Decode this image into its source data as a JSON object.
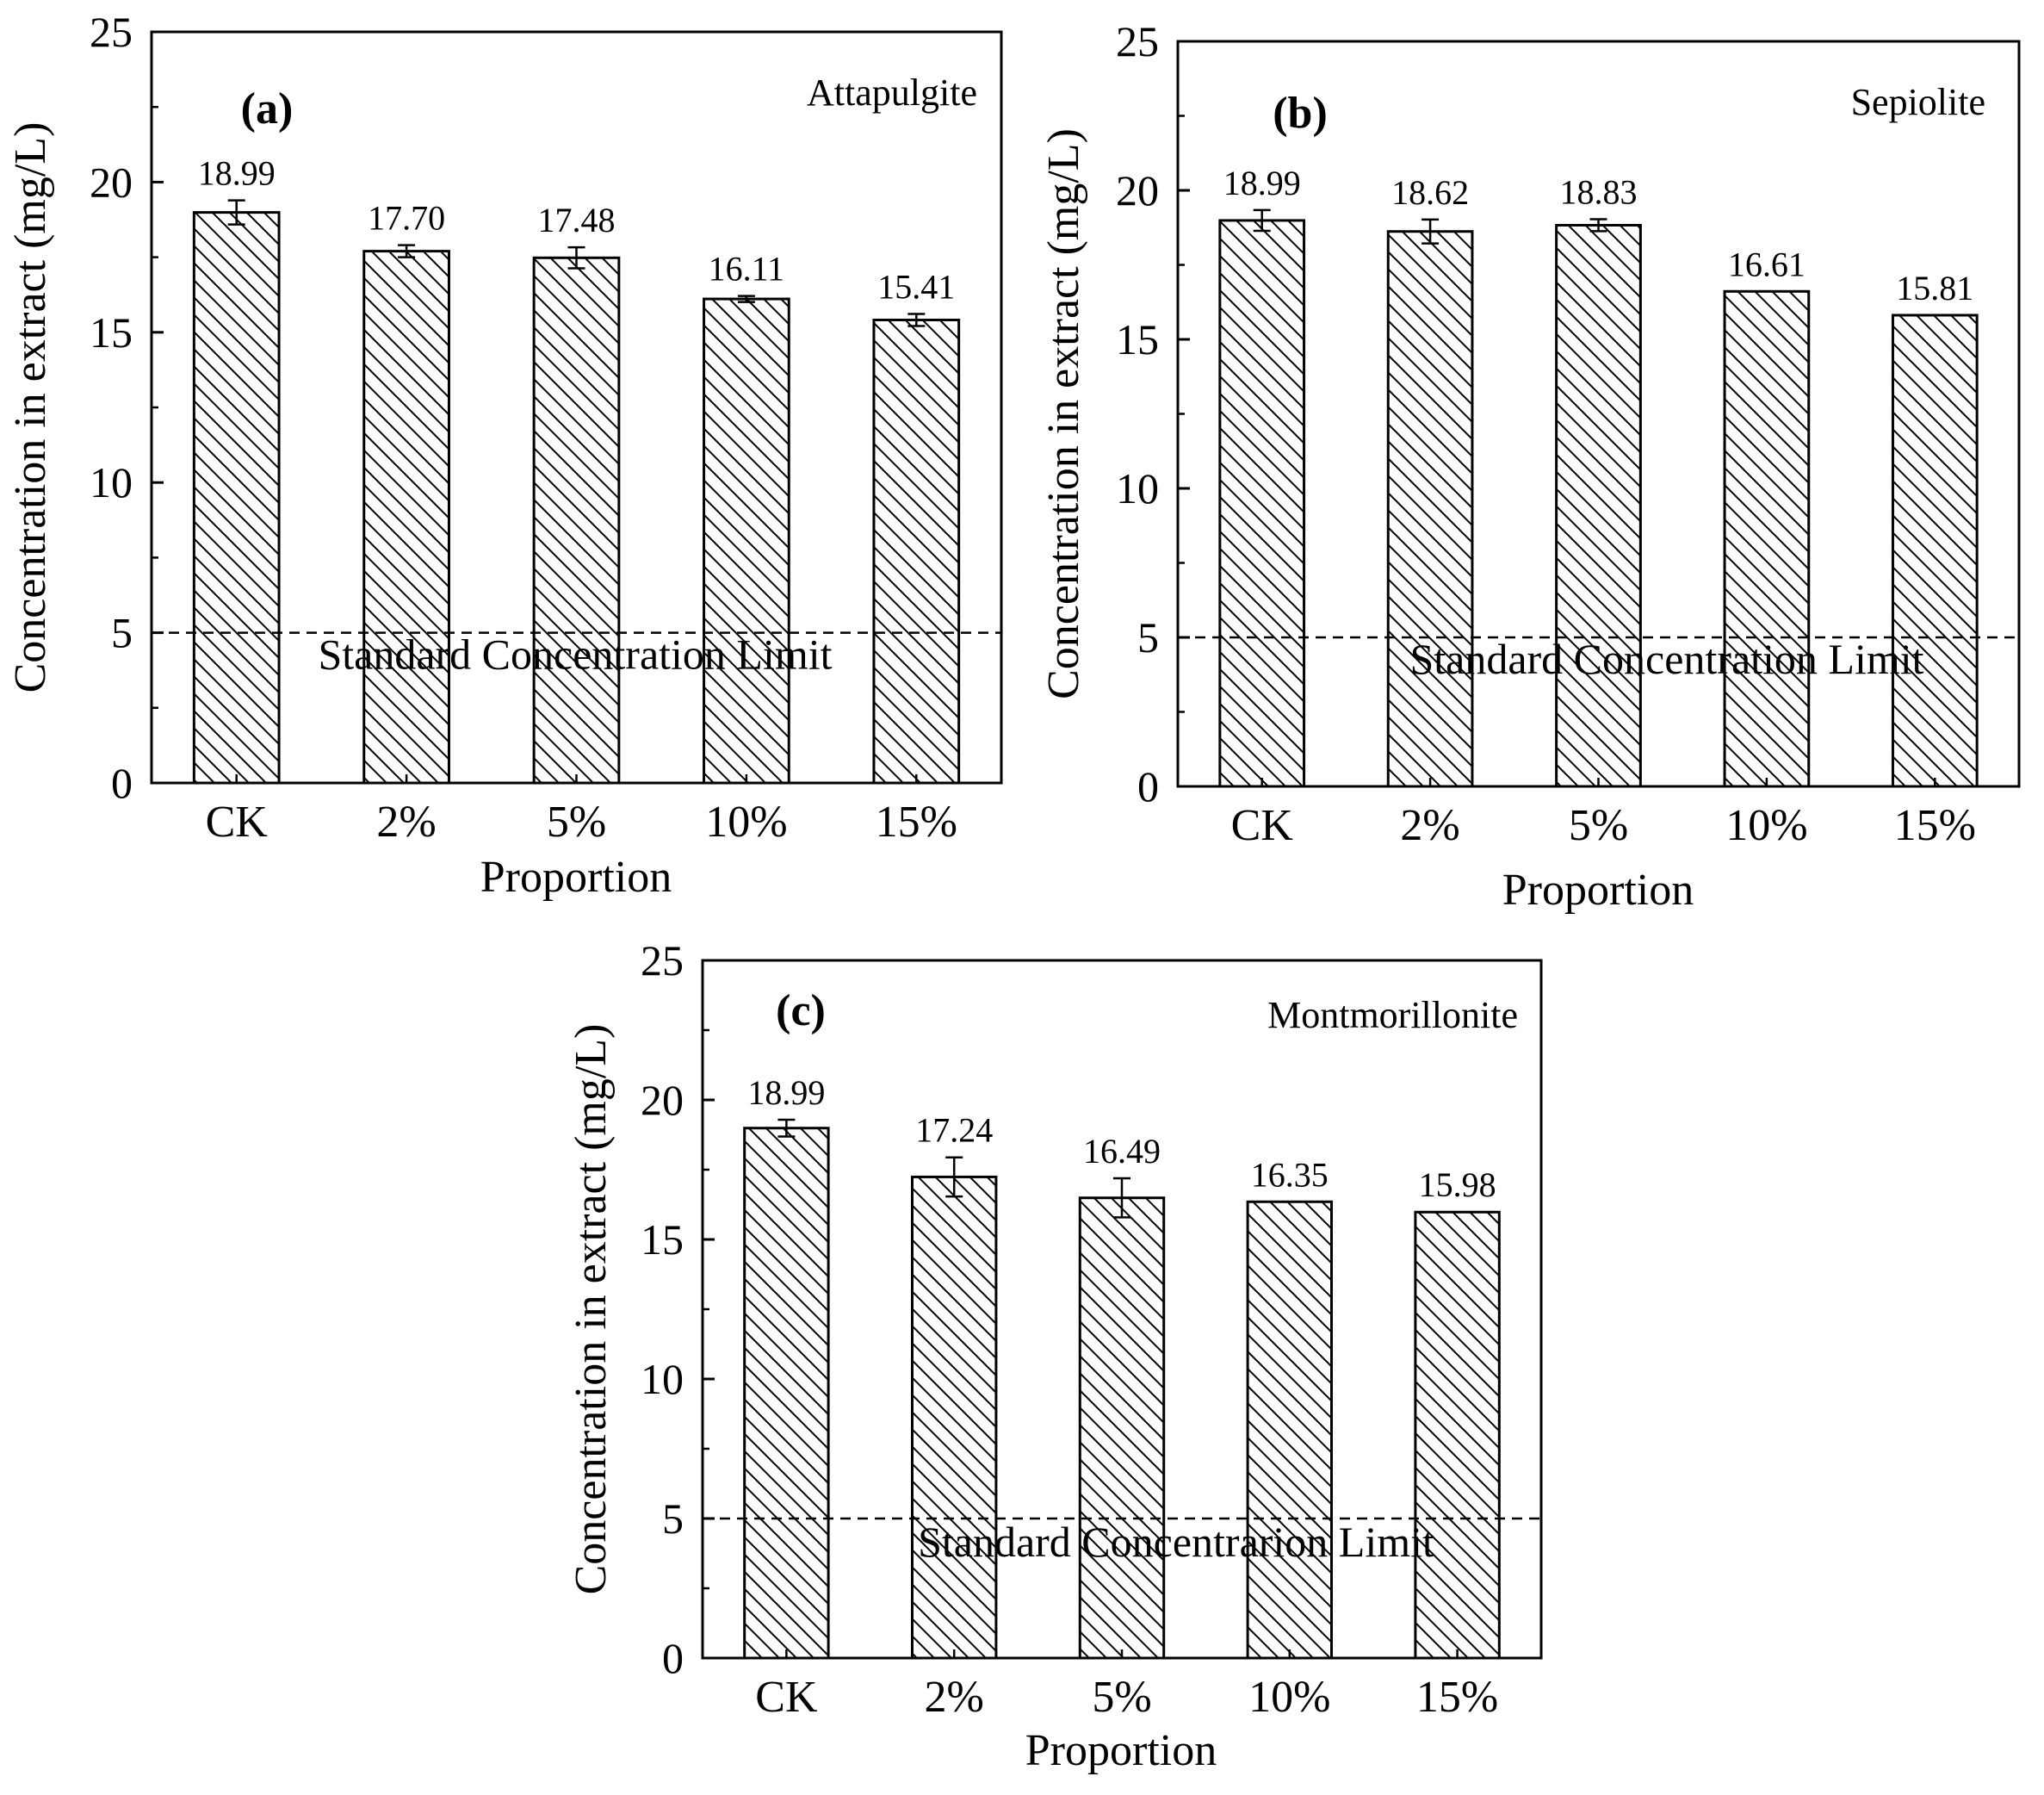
{
  "figure": {
    "x_axis_title": "Proportion",
    "y_axis_title": "Concentration in extract (mg/L)"
  },
  "chart_data": [
    {
      "type": "bar",
      "panel": "(a)",
      "title": "Attapulgite",
      "categories": [
        "CK",
        "2%",
        "5%",
        "10%",
        "15%"
      ],
      "values": [
        18.99,
        17.7,
        17.48,
        16.11,
        15.41
      ],
      "value_labels": [
        "18.99",
        "17.70",
        "17.48",
        "16.11",
        "15.41"
      ],
      "errors": [
        0.4,
        0.2,
        0.35,
        0.1,
        0.2
      ],
      "xlabel": "Proportion",
      "ylabel": "Concentration in extract (mg/L)",
      "ylim": [
        0,
        25
      ],
      "yticks": [
        0,
        5,
        10,
        15,
        20,
        25
      ],
      "reference_line": {
        "value": 5,
        "label": "Standard Concentration Limit",
        "style": "dashed"
      }
    },
    {
      "type": "bar",
      "panel": "(b)",
      "title": "Sepiolite",
      "categories": [
        "CK",
        "2%",
        "5%",
        "10%",
        "15%"
      ],
      "values": [
        18.99,
        18.62,
        18.83,
        16.61,
        15.81
      ],
      "value_labels": [
        "18.99",
        "18.62",
        "18.83",
        "16.61",
        "15.81"
      ],
      "errors": [
        0.35,
        0.4,
        0.2,
        0.0,
        0.0
      ],
      "xlabel": "Proportion",
      "ylabel": "Concentration in extract (mg/L)",
      "ylim": [
        0,
        25
      ],
      "yticks": [
        0,
        5,
        10,
        15,
        20,
        25
      ],
      "reference_line": {
        "value": 5,
        "label": "Standard Concentration Limit",
        "style": "dashed"
      }
    },
    {
      "type": "bar",
      "panel": "(c)",
      "title": "Montmorillonite",
      "categories": [
        "CK",
        "2%",
        "5%",
        "10%",
        "15%"
      ],
      "values": [
        18.99,
        17.24,
        16.49,
        16.35,
        15.98
      ],
      "value_labels": [
        "18.99",
        "17.24",
        "16.49",
        "16.35",
        "15.98"
      ],
      "errors": [
        0.3,
        0.7,
        0.7,
        0.0,
        0.0
      ],
      "xlabel": "Proportion",
      "ylabel": "Concentration in extract (mg/L)",
      "ylim": [
        0,
        25
      ],
      "yticks": [
        0,
        5,
        10,
        15,
        20,
        25
      ],
      "reference_line": {
        "value": 5,
        "label": "Standard Concentrarion Limit",
        "style": "dashed"
      }
    }
  ]
}
